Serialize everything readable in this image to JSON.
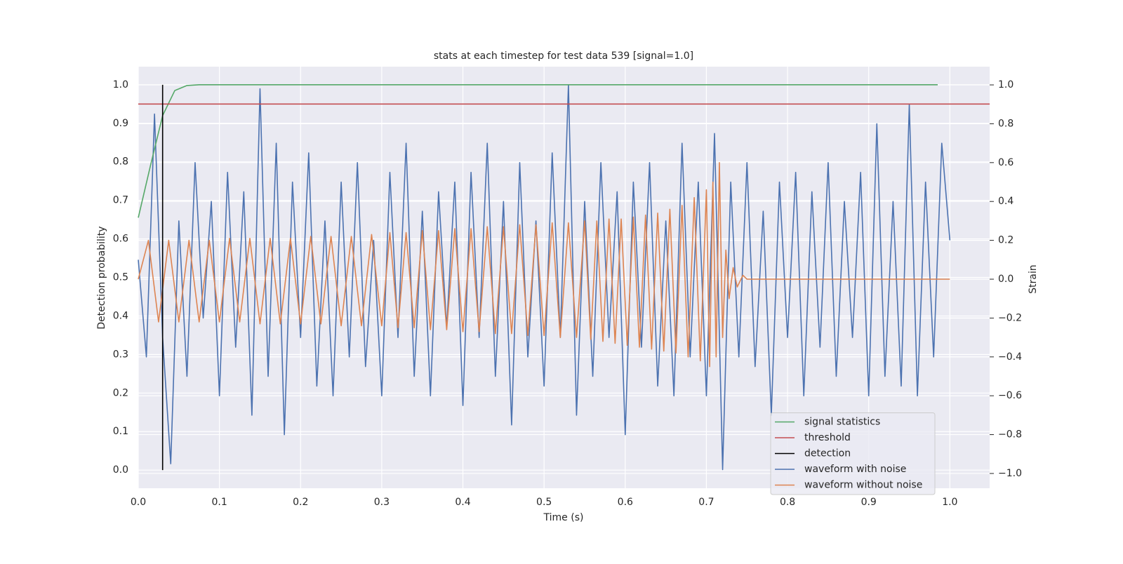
{
  "chart_data": {
    "type": "line",
    "title": "stats at each timestep for test data 539 [signal=1.0]",
    "x_label": "Time (s)",
    "y_label": "Detection probability",
    "y2_label": "Strain",
    "xlim": [
      0,
      1.049
    ],
    "ylim": [
      -0.047,
      1.047
    ],
    "y2lim": [
      -1.076,
      1.094
    ],
    "xticks": [
      {
        "value": 0,
        "label": "0.0"
      },
      0.1,
      0.2,
      0.3,
      0.4,
      0.5,
      0.6,
      0.7,
      0.8,
      0.9,
      {
        "value": 1,
        "label": "1.0"
      }
    ],
    "yticks": [
      {
        "value": 0,
        "label": "0.0"
      },
      0.1,
      0.2,
      0.3,
      0.4,
      0.5,
      0.6,
      0.7,
      0.8,
      0.9,
      {
        "value": 1,
        "label": "1.0"
      }
    ],
    "y2ticks": [
      {
        "value": -1,
        "label": "−1.0"
      },
      {
        "value": -0.8,
        "label": "−0.8"
      },
      {
        "value": -0.6,
        "label": "−0.6"
      },
      {
        "value": -0.4,
        "label": "−0.4"
      },
      {
        "value": -0.2,
        "label": "−0.2"
      },
      {
        "value": 0,
        "label": "0.0"
      },
      0.2,
      0.4,
      0.6,
      0.8,
      {
        "value": 1,
        "label": "1.0"
      }
    ],
    "grid": true,
    "legend": "lower right",
    "series": [
      {
        "name": "signal statistics",
        "color": "#55a868",
        "x": [
          0,
          0.015,
          0.03,
          0.045,
          0.06,
          0.075,
          0.985
        ],
        "values": [
          0.655,
          0.79,
          0.92,
          0.985,
          0.998,
          1.0,
          1.0
        ]
      },
      {
        "name": "threshold",
        "color": "#c44e52",
        "x": [
          0,
          1.049
        ],
        "values": [
          0.95,
          0.95
        ]
      },
      {
        "name": "detection",
        "color": "#000000",
        "x": [
          0.03,
          0.03
        ],
        "values": [
          0,
          1
        ]
      },
      {
        "name": "waveform with noise",
        "color": "#4c72b0",
        "axis": "y2",
        "x": [
          0,
          0.01,
          0.02,
          0.03,
          0.04,
          0.05,
          0.06,
          0.07,
          0.08,
          0.09,
          0.1,
          0.11,
          0.12,
          0.13,
          0.14,
          0.15,
          0.16,
          0.17,
          0.18,
          0.19,
          0.2,
          0.21,
          0.22,
          0.23,
          0.24,
          0.25,
          0.26,
          0.27,
          0.28,
          0.29,
          0.3,
          0.31,
          0.32,
          0.33,
          0.34,
          0.35,
          0.36,
          0.37,
          0.38,
          0.39,
          0.4,
          0.41,
          0.42,
          0.43,
          0.44,
          0.45,
          0.46,
          0.47,
          0.48,
          0.49,
          0.5,
          0.51,
          0.52,
          0.53,
          0.54,
          0.55,
          0.56,
          0.57,
          0.58,
          0.59,
          0.6,
          0.61,
          0.62,
          0.63,
          0.64,
          0.65,
          0.66,
          0.67,
          0.68,
          0.69,
          0.7,
          0.71,
          0.72,
          0.73,
          0.74,
          0.75,
          0.76,
          0.77,
          0.78,
          0.79,
          0.8,
          0.81,
          0.82,
          0.83,
          0.84,
          0.85,
          0.86,
          0.87,
          0.88,
          0.89,
          0.9,
          0.91,
          0.92,
          0.93,
          0.94,
          0.95,
          0.96,
          0.97,
          0.98,
          0.99,
          1.0
        ],
        "values": [
          0.1,
          -0.4,
          0.85,
          -0.3,
          -0.95,
          0.3,
          -0.5,
          0.6,
          -0.2,
          0.4,
          -0.6,
          0.55,
          -0.35,
          0.45,
          -0.7,
          0.98,
          -0.5,
          0.7,
          -0.8,
          0.5,
          -0.3,
          0.65,
          -0.55,
          0.3,
          -0.6,
          0.5,
          -0.4,
          0.6,
          -0.45,
          0.2,
          -0.6,
          0.55,
          -0.3,
          0.7,
          -0.5,
          0.35,
          -0.6,
          0.45,
          -0.25,
          0.5,
          -0.65,
          0.55,
          -0.3,
          0.7,
          -0.5,
          0.4,
          -0.75,
          0.6,
          -0.4,
          0.3,
          -0.55,
          0.65,
          -0.3,
          1.0,
          -0.7,
          0.4,
          -0.5,
          0.6,
          -0.3,
          0.45,
          -0.8,
          0.5,
          -0.35,
          0.6,
          -0.55,
          0.3,
          -0.6,
          0.7,
          -0.4,
          0.5,
          -0.6,
          0.75,
          -0.98,
          0.5,
          -0.4,
          0.6,
          -0.45,
          0.35,
          -0.7,
          0.5,
          -0.3,
          0.55,
          -0.6,
          0.45,
          -0.35,
          0.6,
          -0.5,
          0.4,
          -0.3,
          0.55,
          -0.6,
          0.8,
          -0.5,
          0.4,
          -0.55,
          0.9,
          -0.6,
          0.5,
          -0.4,
          0.7,
          0.2
        ]
      },
      {
        "name": "waveform without noise",
        "color": "#dd8452",
        "axis": "y2",
        "x": [
          0,
          0.0125,
          0.025,
          0.0375,
          0.05,
          0.0625,
          0.075,
          0.0875,
          0.1,
          0.1125,
          0.125,
          0.1375,
          0.15,
          0.1625,
          0.175,
          0.1875,
          0.2,
          0.2125,
          0.225,
          0.2375,
          0.25,
          0.2625,
          0.275,
          0.2875,
          0.3,
          0.31,
          0.32,
          0.33,
          0.34,
          0.35,
          0.36,
          0.37,
          0.38,
          0.39,
          0.4,
          0.41,
          0.42,
          0.43,
          0.44,
          0.45,
          0.46,
          0.47,
          0.48,
          0.49,
          0.5,
          0.51,
          0.52,
          0.53,
          0.54,
          0.55,
          0.5575,
          0.565,
          0.5725,
          0.58,
          0.5875,
          0.595,
          0.6025,
          0.61,
          0.6175,
          0.625,
          0.6325,
          0.64,
          0.6475,
          0.655,
          0.6625,
          0.67,
          0.6775,
          0.685,
          0.6925,
          0.7,
          0.704,
          0.708,
          0.712,
          0.716,
          0.72,
          0.724,
          0.728,
          0.733,
          0.738,
          0.745,
          0.75,
          1.0
        ],
        "values": [
          0,
          0.2,
          -0.22,
          0.2,
          -0.22,
          0.2,
          -0.22,
          0.2,
          -0.22,
          0.21,
          -0.22,
          0.21,
          -0.23,
          0.21,
          -0.23,
          0.21,
          -0.23,
          0.22,
          -0.23,
          0.22,
          -0.24,
          0.22,
          -0.24,
          0.23,
          -0.24,
          0.24,
          -0.25,
          0.24,
          -0.25,
          0.25,
          -0.26,
          0.25,
          -0.26,
          0.26,
          -0.27,
          0.26,
          -0.27,
          0.27,
          -0.28,
          0.27,
          -0.28,
          0.28,
          -0.29,
          0.28,
          -0.29,
          0.29,
          -0.3,
          0.29,
          -0.3,
          0.3,
          -0.31,
          0.3,
          -0.32,
          0.31,
          -0.33,
          0.31,
          -0.34,
          0.32,
          -0.35,
          0.33,
          -0.36,
          0.34,
          -0.37,
          0.36,
          -0.38,
          0.38,
          -0.4,
          0.42,
          -0.42,
          0.46,
          -0.45,
          0.5,
          -0.4,
          0.6,
          -0.3,
          0.15,
          -0.1,
          0.06,
          -0.04,
          0.02,
          0,
          0
        ]
      }
    ]
  }
}
